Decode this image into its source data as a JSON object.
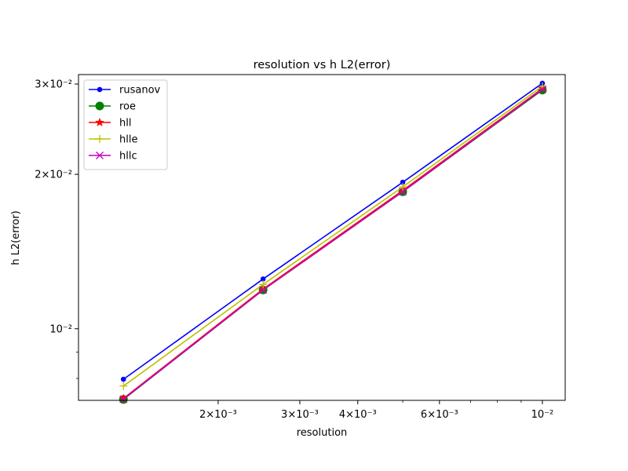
{
  "chart_data": {
    "type": "line",
    "title": "resolution vs h L2(error)",
    "xlabel": "resolution",
    "ylabel": "h L2(error)",
    "xscale": "log",
    "yscale": "log",
    "xlim": [
      0.001,
      0.0112
    ],
    "ylim": [
      0.00725,
      0.0313
    ],
    "grid": false,
    "legend_position": "top-left",
    "x": [
      0.00125,
      0.0025,
      0.005,
      0.01
    ],
    "x_ticks": [
      {
        "value": 0.002,
        "label": "2×10⁻³"
      },
      {
        "value": 0.003,
        "label": "3×10⁻³"
      },
      {
        "value": 0.004,
        "label": "4×10⁻³"
      },
      {
        "value": 0.006,
        "label": "6×10⁻³"
      },
      {
        "value": 0.01,
        "label": "10⁻²"
      }
    ],
    "x_minor_ticks": [
      0.005,
      0.007,
      0.008,
      0.009
    ],
    "y_ticks": [
      {
        "value": 0.01,
        "label": "10⁻²"
      },
      {
        "value": 0.02,
        "label": "2×10⁻²"
      },
      {
        "value": 0.03,
        "label": "3×10⁻²"
      }
    ],
    "y_minor_ticks": [
      0.008,
      0.009
    ],
    "series": [
      {
        "name": "rusanov",
        "color": "#0000ff",
        "marker": "point",
        "values": [
          0.00797,
          0.0125,
          0.0193,
          0.0301
        ]
      },
      {
        "name": "roe",
        "color": "#008000",
        "marker": "circle",
        "values": [
          0.00728,
          0.0119,
          0.0185,
          0.0292
        ]
      },
      {
        "name": "hll",
        "color": "#ff0000",
        "marker": "star",
        "values": [
          0.00731,
          0.01195,
          0.0186,
          0.0294
        ]
      },
      {
        "name": "hlle",
        "color": "#bfbf00",
        "marker": "plus",
        "values": [
          0.00773,
          0.0122,
          0.0189,
          0.0297
        ]
      },
      {
        "name": "hllc",
        "color": "#bf00bf",
        "marker": "x",
        "values": [
          0.00729,
          0.0119,
          0.0185,
          0.0293
        ]
      }
    ]
  }
}
